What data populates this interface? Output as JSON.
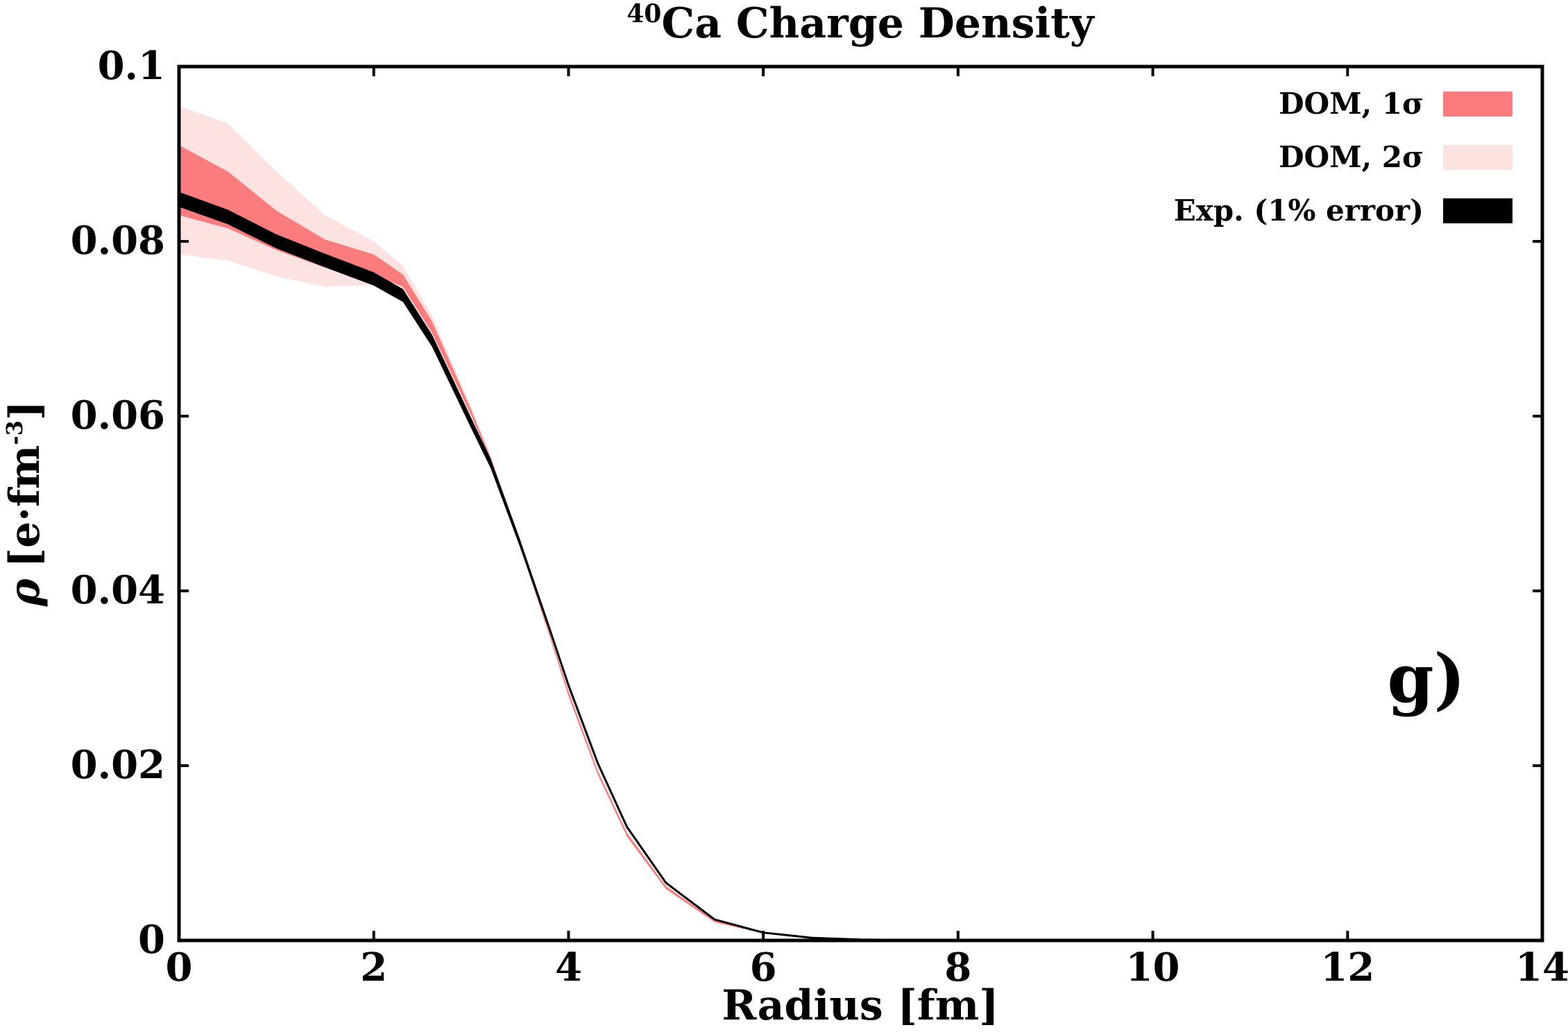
{
  "chart_data": {
    "type": "area",
    "title_sup": "40",
    "title": "Ca Charge Density",
    "xlabel": "Radius [fm]",
    "ylabel_symbol": "ρ",
    "ylabel_unit": "[e·fm",
    "ylabel_exp": "-3",
    "ylabel_close": "]",
    "panel_label": "g)",
    "xlim": [
      0,
      14
    ],
    "ylim": [
      0,
      0.1
    ],
    "x_ticks": [
      0,
      2,
      4,
      6,
      8,
      10,
      12,
      14
    ],
    "x_tick_labels": [
      "0",
      "2",
      "4",
      "6",
      "8",
      "10",
      "12",
      "14"
    ],
    "y_ticks": [
      0,
      0.02,
      0.04,
      0.06,
      0.08,
      0.1
    ],
    "y_tick_labels": [
      "0",
      "0.02",
      "0.04",
      "0.06",
      "0.08",
      "0.1"
    ],
    "legend_position": "top-right",
    "x": [
      0,
      0.5,
      1.0,
      1.5,
      2.0,
      2.3,
      2.6,
      3.0,
      3.2,
      3.5,
      3.8,
      4.0,
      4.3,
      4.6,
      5.0,
      5.5,
      6.0,
      6.5,
      7.0,
      8.0,
      14.0
    ],
    "series": [
      {
        "name": "DOM, 2σ",
        "color": "#fde2e2",
        "lower": [
          0.0785,
          0.0778,
          0.076,
          0.0748,
          0.075,
          0.0737,
          0.0688,
          0.0598,
          0.0548,
          0.045,
          0.0348,
          0.0278,
          0.0188,
          0.0118,
          0.0058,
          0.002,
          0.0008,
          0.0002,
          0.0,
          0.0,
          0.0
        ],
        "upper": [
          0.0955,
          0.0935,
          0.088,
          0.083,
          0.08,
          0.0772,
          0.0715,
          0.061,
          0.0555,
          0.0458,
          0.0355,
          0.0287,
          0.0196,
          0.0124,
          0.0063,
          0.0024,
          0.001,
          0.0003,
          0.0001,
          0.0,
          0.0
        ]
      },
      {
        "name": "DOM, 1σ",
        "color": "#fb7c7c",
        "lower": [
          0.083,
          0.0815,
          0.079,
          0.077,
          0.0762,
          0.0748,
          0.0695,
          0.0601,
          0.055,
          0.0452,
          0.035,
          0.028,
          0.019,
          0.0119,
          0.0059,
          0.0021,
          0.0008,
          0.0002,
          0.0,
          0.0,
          0.0
        ],
        "upper": [
          0.091,
          0.088,
          0.0835,
          0.0802,
          0.0785,
          0.0762,
          0.0708,
          0.0607,
          0.0553,
          0.0456,
          0.0353,
          0.0285,
          0.0194,
          0.0123,
          0.0062,
          0.0023,
          0.0009,
          0.0003,
          0.0001,
          0.0,
          0.0
        ]
      },
      {
        "name": "Exp. (1% error)",
        "color": "#000000",
        "values": [
          0.0848,
          0.0828,
          0.08,
          0.0778,
          0.0757,
          0.0738,
          0.0686,
          0.0592,
          0.0546,
          0.0455,
          0.0358,
          0.0292,
          0.0203,
          0.013,
          0.0066,
          0.0024,
          0.0009,
          0.0003,
          0.0001,
          0.0,
          0.0
        ],
        "rel_error": 0.01
      }
    ]
  }
}
